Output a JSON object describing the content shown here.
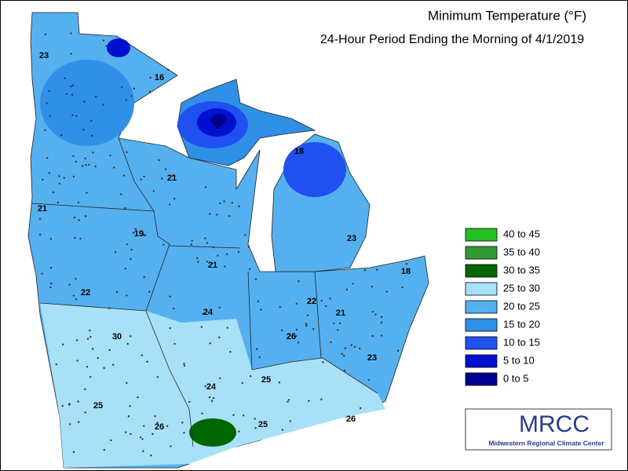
{
  "title": "Minimum Temperature (°F)",
  "subtitle": "24-Hour Period Ending the Morning of 4/1/2019",
  "legend": [
    {
      "label": "40 to 45",
      "color": "#22c022"
    },
    {
      "label": "35 to 40",
      "color": "#339933"
    },
    {
      "label": "30 to 35",
      "color": "#006600"
    },
    {
      "label": "25 to 30",
      "color": "#a8e0f8"
    },
    {
      "label": "20 to 25",
      "color": "#55b0f0"
    },
    {
      "label": "15 to 20",
      "color": "#3090e8"
    },
    {
      "label": "10 to 15",
      "color": "#2050f0"
    },
    {
      "label": "5 to 10",
      "color": "#0010d0"
    },
    {
      "label": "0 to 5",
      "color": "#000090"
    }
  ],
  "map_labels": [
    23,
    16,
    2,
    18,
    21,
    21,
    19,
    23,
    18,
    21,
    22,
    22,
    21,
    24,
    30,
    26,
    23,
    25,
    24,
    25,
    26,
    26,
    25
  ],
  "logo": {
    "text": "MRCC",
    "subtext": "Midwestern Regional Climate Center"
  }
}
